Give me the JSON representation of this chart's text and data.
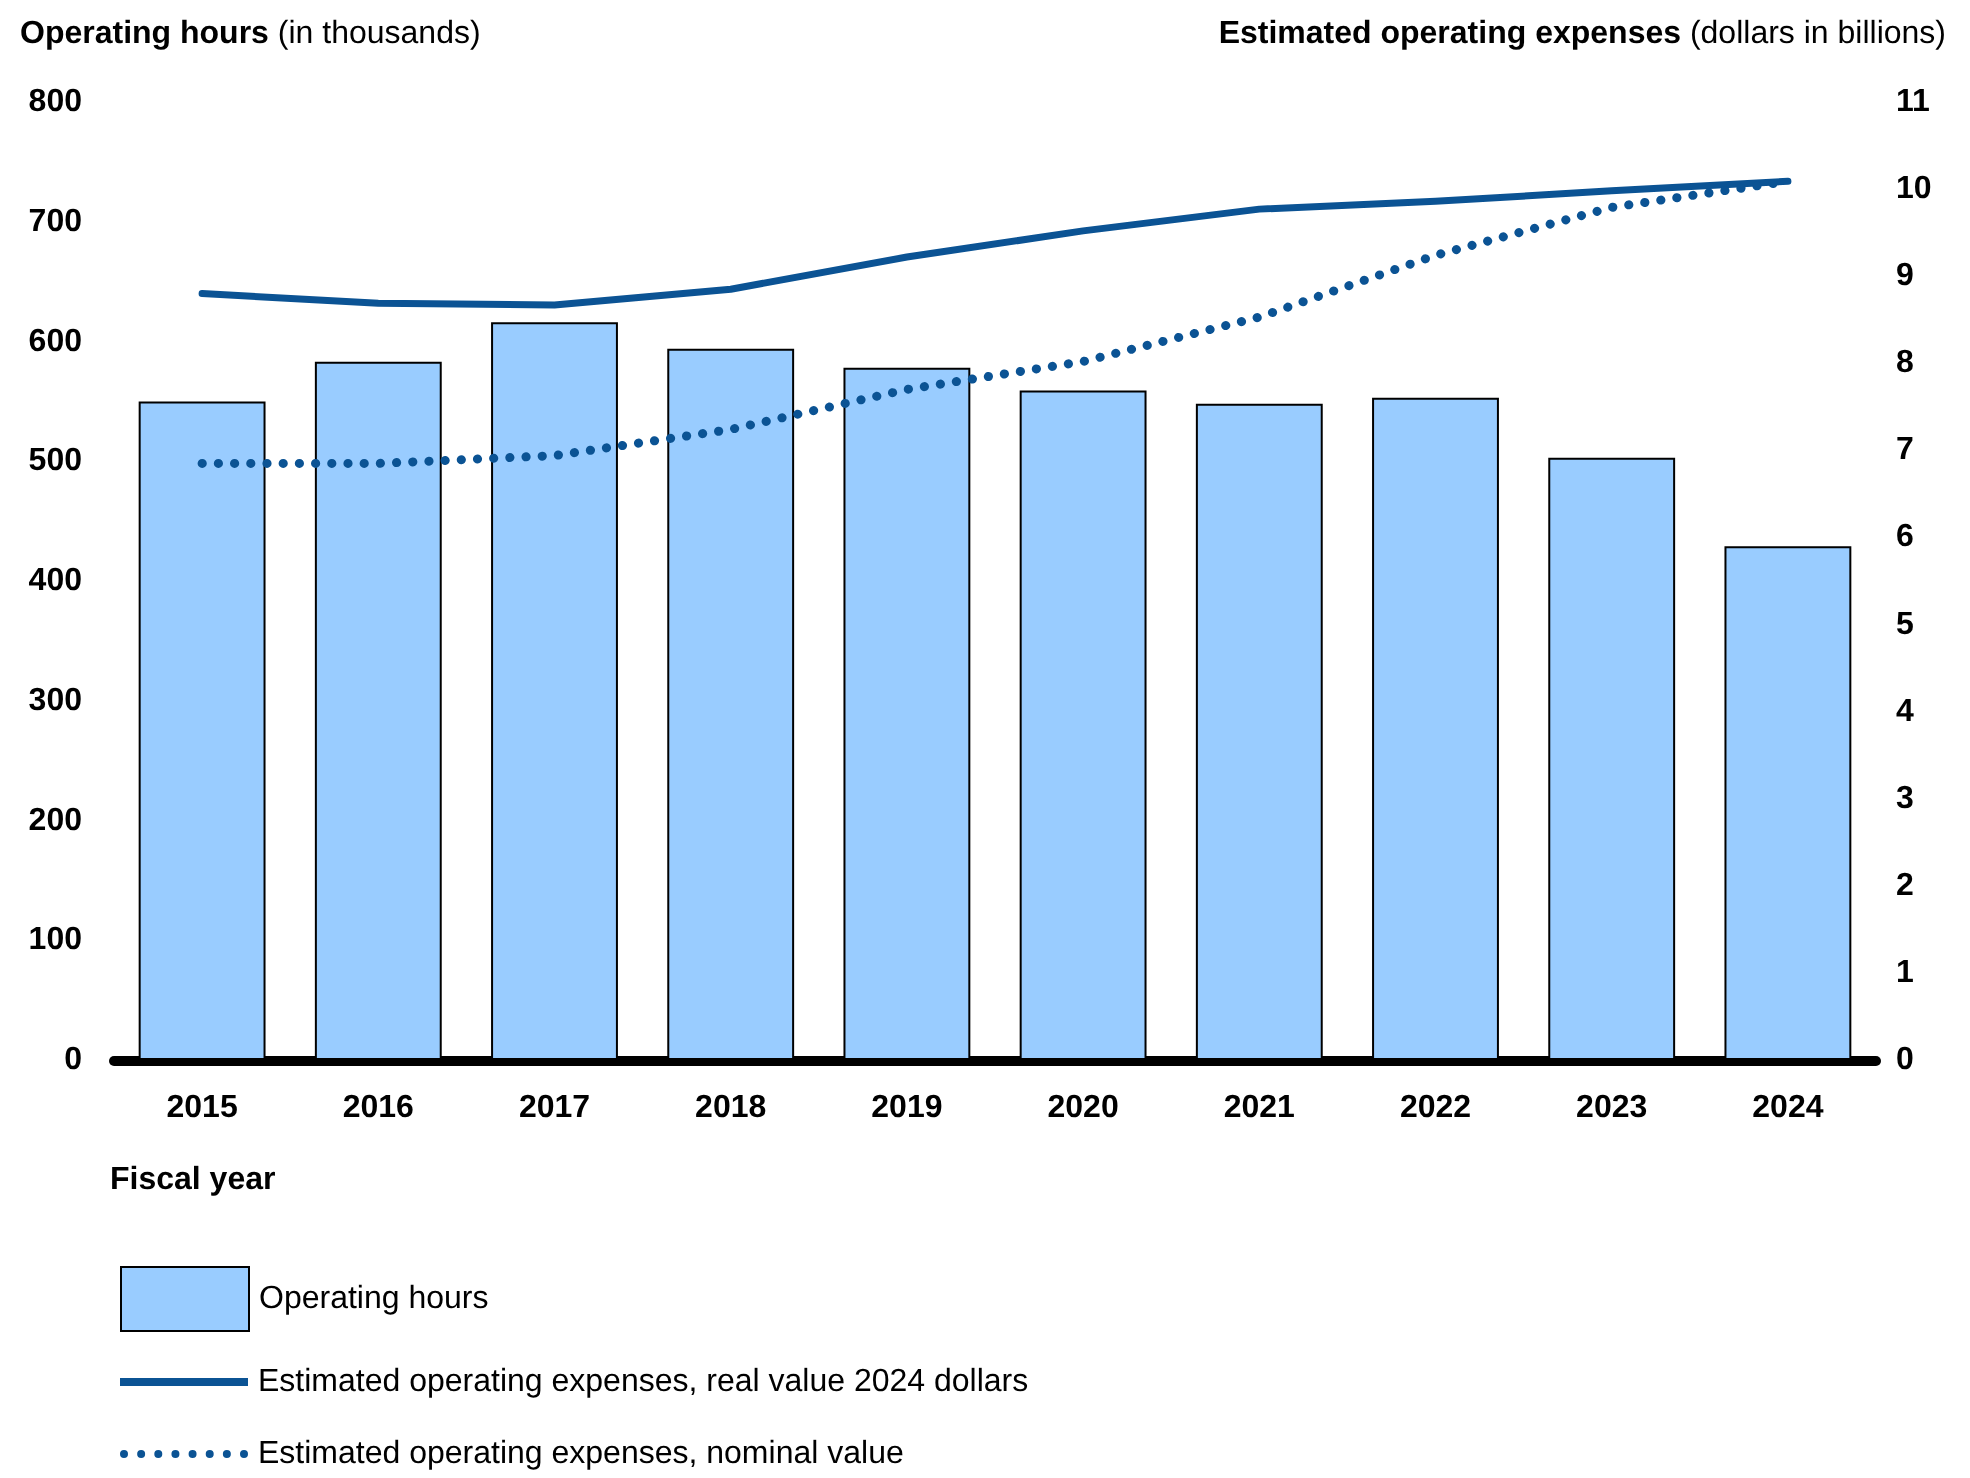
{
  "chart_data": {
    "type": "bar",
    "ylabel": "Operating hours (in thousands)",
    "y2label": "Estimated operating expenses (dollars in billions)",
    "xlabel": "Fiscal year",
    "categories": [
      "2015",
      "2016",
      "2017",
      "2018",
      "2019",
      "2020",
      "2021",
      "2022",
      "2023",
      "2024"
    ],
    "series": [
      {
        "name": "Operating hours",
        "color": "#99ccff",
        "values": [
          550,
          583,
          616,
          594,
          578,
          559,
          548,
          553,
          503,
          429
        ]
      },
      {
        "name": "Estimated operating expenses, real value 2024 dollars",
        "type": "line",
        "axis": "y2",
        "color": "#0b5394",
        "line_style": "solid",
        "values": [
          8.8,
          8.69,
          8.67,
          8.85,
          9.22,
          9.52,
          9.77,
          9.86,
          9.98,
          10.09
        ]
      },
      {
        "name": "Estimated operating expenses, nominal value",
        "type": "line",
        "axis": "y2",
        "color": "#0b5394",
        "line_style": "dotted",
        "values": [
          6.85,
          6.85,
          6.94,
          7.24,
          7.7,
          8.02,
          8.53,
          9.24,
          9.79,
          10.09
        ]
      }
    ],
    "ylim": [
      0,
      800
    ],
    "yticks": [
      0,
      100,
      200,
      300,
      400,
      500,
      600,
      700,
      800
    ],
    "y2lim": [
      0,
      11
    ],
    "y2ticks": [
      0,
      1,
      2,
      3,
      4,
      5,
      6,
      7,
      8,
      9,
      10,
      11
    ],
    "grid": false,
    "legend": "bottom left",
    "marker": "none"
  }
}
